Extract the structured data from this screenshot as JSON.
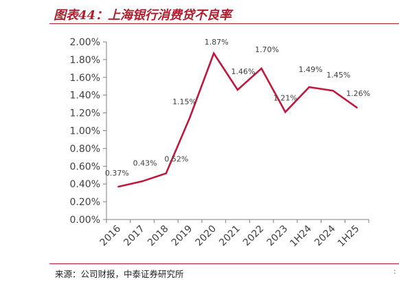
{
  "title": "图表44：上海银行消费贷不良率",
  "source": "来源：公司财报，中泰证券研究所",
  "colors": {
    "title": "#b01f2e",
    "line": "#c0183c",
    "axis": "#7f7f7f",
    "text": "#404040"
  },
  "chart_data": {
    "type": "line",
    "title": "",
    "xlabel": "",
    "ylabel": "",
    "categories": [
      "2016",
      "2017",
      "2018",
      "2019",
      "2020",
      "2021",
      "2022",
      "2023",
      "1H24",
      "2024",
      "1H25"
    ],
    "series": [
      {
        "values": [
          0.37,
          0.43,
          0.52,
          1.15,
          1.87,
          1.46,
          1.7,
          1.21,
          1.49,
          1.45,
          1.26
        ]
      }
    ],
    "data_labels": [
      "0.37%",
      "0.43%",
      "0.52%",
      "1.15%",
      "1.87%",
      "1.46%",
      "1.70%",
      "1.21%",
      "1.49%",
      "1.45%",
      "1.26%"
    ],
    "ylim": [
      0,
      2.0
    ],
    "yticks": [
      0,
      0.2,
      0.4,
      0.6,
      0.8,
      1.0,
      1.2,
      1.4,
      1.6,
      1.8,
      2.0
    ],
    "ytick_labels": [
      "0.00%",
      "0.20%",
      "0.40%",
      "0.60%",
      "0.80%",
      "1.00%",
      "1.20%",
      "1.40%",
      "1.60%",
      "1.80%",
      "2.00%"
    ],
    "grid": false,
    "legend": "none"
  }
}
